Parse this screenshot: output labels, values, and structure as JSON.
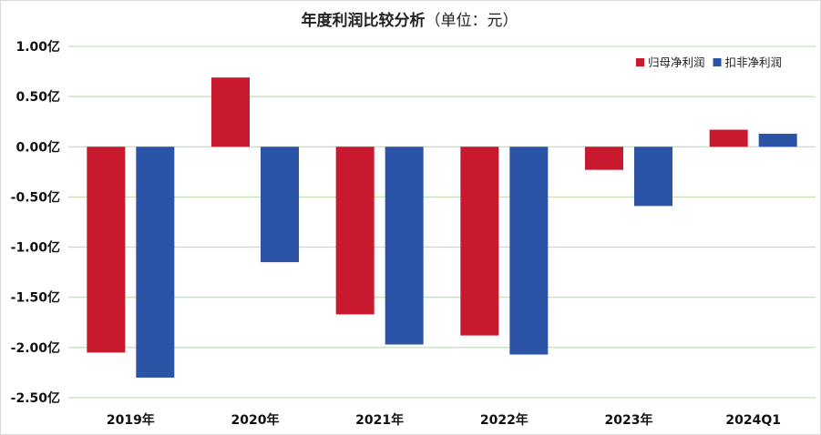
{
  "chart_data": {
    "type": "bar",
    "title": "年度利润比较分析",
    "title_unit": "（单位：元）",
    "categories": [
      "2019年",
      "2020年",
      "2021年",
      "2022年",
      "2023年",
      "2024Q1"
    ],
    "series": [
      {
        "name": "归母净利润",
        "color": "#c8192f",
        "values": [
          -2.05,
          0.69,
          -1.67,
          -1.88,
          -0.23,
          0.17
        ]
      },
      {
        "name": "扣非净利润",
        "color": "#2c54a6",
        "values": [
          -2.3,
          -1.15,
          -1.97,
          -2.07,
          -0.59,
          0.13
        ]
      }
    ],
    "yticks": [
      "1.00亿",
      "0.50亿",
      "0.00亿",
      "-0.50亿",
      "-1.00亿",
      "-1.50亿",
      "-2.00亿",
      "-2.50亿"
    ],
    "ytick_values": [
      1.0,
      0.5,
      0.0,
      -0.5,
      -1.0,
      -1.5,
      -2.0,
      -2.5
    ],
    "ylim": [
      -2.5,
      1.0
    ],
    "grid": true,
    "legend_position": "top-right",
    "xlabel": "",
    "ylabel": ""
  }
}
